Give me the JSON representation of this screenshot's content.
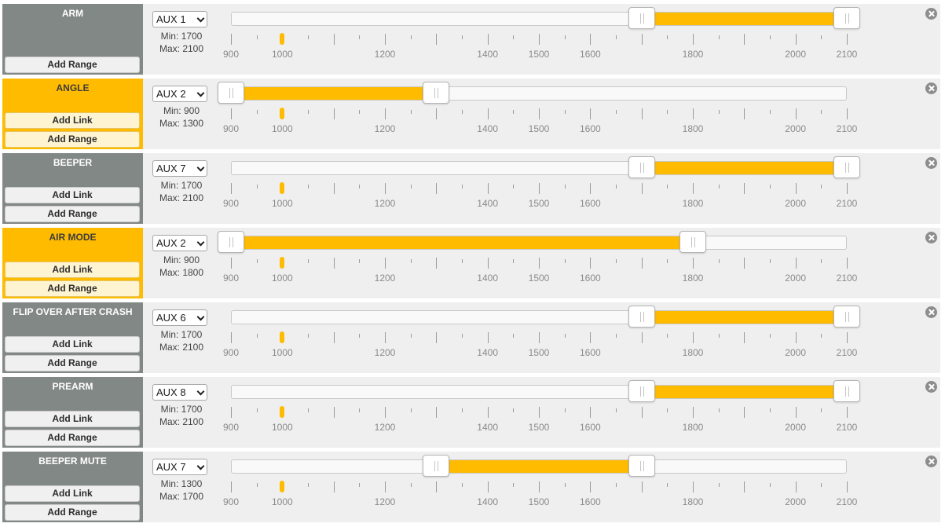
{
  "scale": {
    "min": 900,
    "max": 2100,
    "labels": [
      900,
      1000,
      1200,
      1400,
      1500,
      1600,
      1800,
      2000,
      2100
    ],
    "current_value": 1000
  },
  "colors": {
    "active": "#ffbb00",
    "inactive": "#828885"
  },
  "labels": {
    "add_link": "Add Link",
    "add_range": "Add Range",
    "min_prefix": "Min: ",
    "max_prefix": "Max: "
  },
  "modes": [
    {
      "name": "ARM",
      "active": false,
      "has_link": false,
      "aux": "AUX 1",
      "min": 1700,
      "max": 2100
    },
    {
      "name": "ANGLE",
      "active": true,
      "has_link": true,
      "aux": "AUX 2",
      "min": 900,
      "max": 1300
    },
    {
      "name": "BEEPER",
      "active": false,
      "has_link": true,
      "aux": "AUX 7",
      "min": 1700,
      "max": 2100
    },
    {
      "name": "AIR MODE",
      "active": true,
      "has_link": true,
      "aux": "AUX 2",
      "min": 900,
      "max": 1800
    },
    {
      "name": "FLIP OVER AFTER CRASH",
      "active": false,
      "has_link": true,
      "aux": "AUX 6",
      "min": 1700,
      "max": 2100
    },
    {
      "name": "PREARM",
      "active": false,
      "has_link": true,
      "aux": "AUX 8",
      "min": 1700,
      "max": 2100
    },
    {
      "name": "BEEPER MUTE",
      "active": false,
      "has_link": true,
      "aux": "AUX 7",
      "min": 1300,
      "max": 1700
    }
  ]
}
